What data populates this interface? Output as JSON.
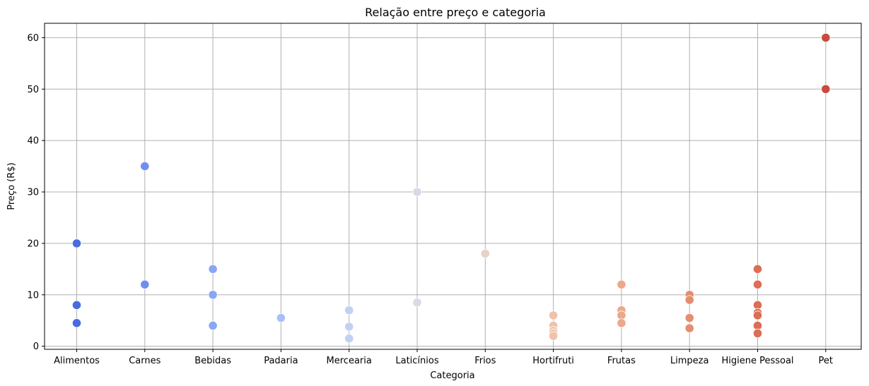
{
  "chart_data": {
    "type": "scatter",
    "title": "Relação entre preço e categoria",
    "xlabel": "Categoria",
    "ylabel": "Preço (R$)",
    "categories": [
      "Alimentos",
      "Carnes",
      "Bebidas",
      "Padaria",
      "Mercearia",
      "Laticínios",
      "Frios",
      "Hortifruti",
      "Frutas",
      "Limpeza",
      "Higiene Pessoal",
      "Pet"
    ],
    "ylim": [
      -0.6,
      62.8
    ],
    "yticks": [
      0,
      10,
      20,
      30,
      40,
      50,
      60
    ],
    "grid": true,
    "colors": [
      "#4a6be0",
      "#6f8ff0",
      "#8aa7f5",
      "#a7c0f7",
      "#c0d1f3",
      "#d6dbe6",
      "#e6d2c8",
      "#efc2aa",
      "#eba88a",
      "#e48e6f",
      "#db6e54",
      "#c94a3f"
    ],
    "points": [
      {
        "x": "Alimentos",
        "y": 20
      },
      {
        "x": "Alimentos",
        "y": 8
      },
      {
        "x": "Alimentos",
        "y": 4.5
      },
      {
        "x": "Carnes",
        "y": 35
      },
      {
        "x": "Carnes",
        "y": 12
      },
      {
        "x": "Bebidas",
        "y": 15
      },
      {
        "x": "Bebidas",
        "y": 10
      },
      {
        "x": "Bebidas",
        "y": 4
      },
      {
        "x": "Padaria",
        "y": 5.5
      },
      {
        "x": "Mercearia",
        "y": 7
      },
      {
        "x": "Mercearia",
        "y": 3.8
      },
      {
        "x": "Mercearia",
        "y": 1.5
      },
      {
        "x": "Laticínios",
        "y": 30
      },
      {
        "x": "Laticínios",
        "y": 8.5
      },
      {
        "x": "Frios",
        "y": 18
      },
      {
        "x": "Hortifruti",
        "y": 6
      },
      {
        "x": "Hortifruti",
        "y": 4
      },
      {
        "x": "Hortifruti",
        "y": 3
      },
      {
        "x": "Hortifruti",
        "y": 2.5
      },
      {
        "x": "Hortifruti",
        "y": 2
      },
      {
        "x": "Frutas",
        "y": 12
      },
      {
        "x": "Frutas",
        "y": 7
      },
      {
        "x": "Frutas",
        "y": 6
      },
      {
        "x": "Frutas",
        "y": 4.5
      },
      {
        "x": "Limpeza",
        "y": 10
      },
      {
        "x": "Limpeza",
        "y": 9
      },
      {
        "x": "Limpeza",
        "y": 5.5
      },
      {
        "x": "Limpeza",
        "y": 3.5
      },
      {
        "x": "Higiene Pessoal",
        "y": 15
      },
      {
        "x": "Higiene Pessoal",
        "y": 12
      },
      {
        "x": "Higiene Pessoal",
        "y": 8
      },
      {
        "x": "Higiene Pessoal",
        "y": 6.5
      },
      {
        "x": "Higiene Pessoal",
        "y": 6
      },
      {
        "x": "Higiene Pessoal",
        "y": 4
      },
      {
        "x": "Higiene Pessoal",
        "y": 2.5
      },
      {
        "x": "Pet",
        "y": 60
      },
      {
        "x": "Pet",
        "y": 50
      }
    ]
  }
}
